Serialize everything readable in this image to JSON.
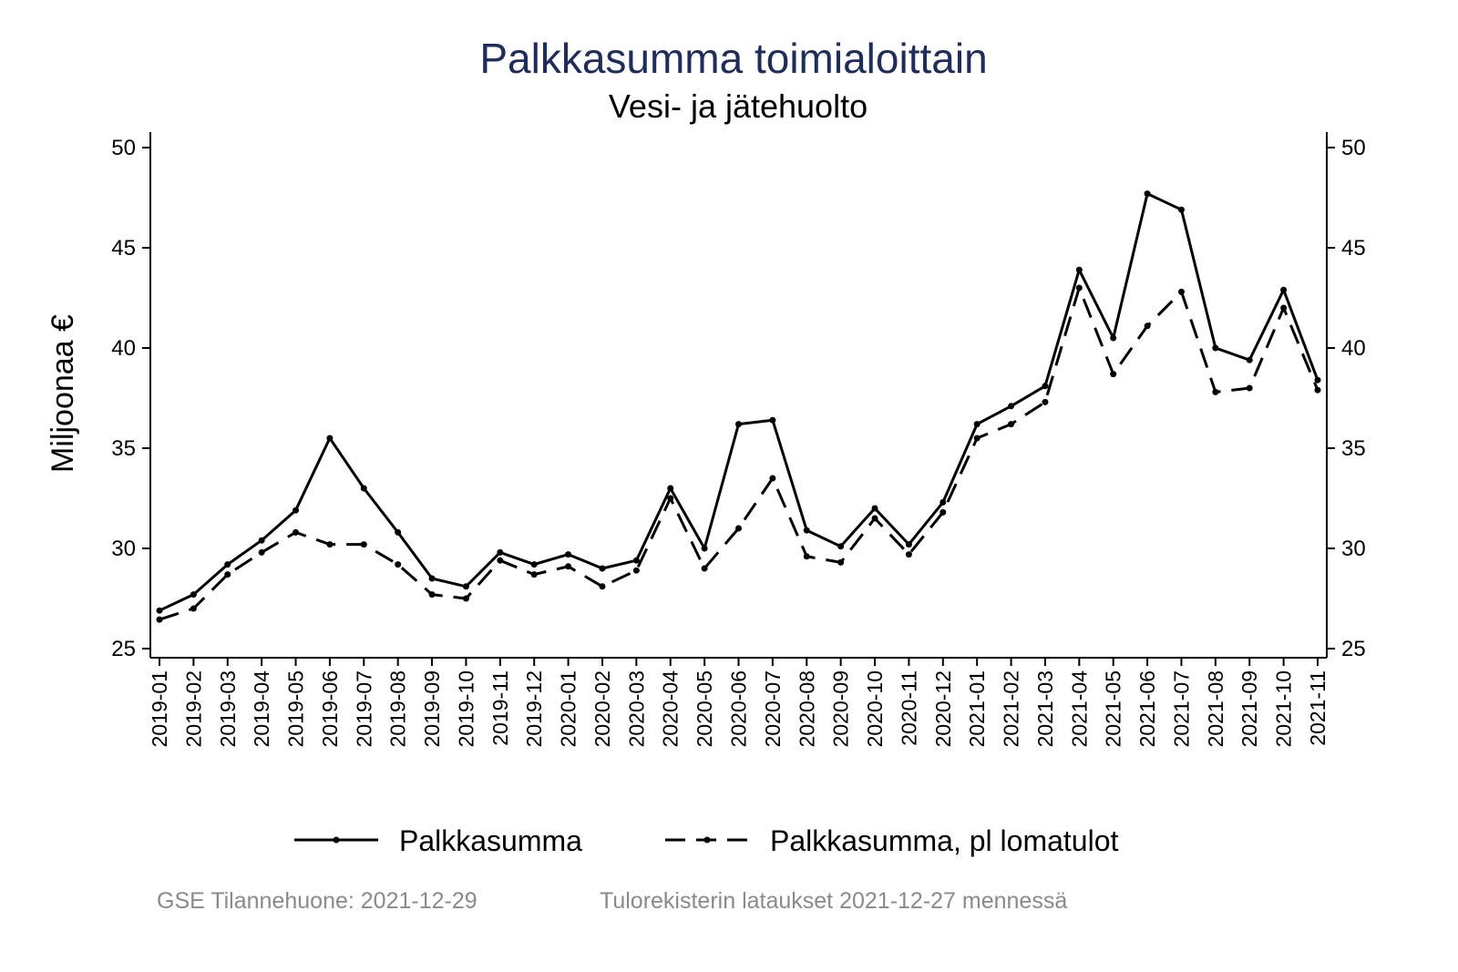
{
  "chart_data": {
    "type": "line",
    "title": "Palkkasumma toimialoittain",
    "subtitle": "Vesi- ja jätehuolto",
    "ylabel": "Miljoonaa €",
    "xlabel": "",
    "ylim": [
      25,
      50
    ],
    "yticks": [
      25,
      30,
      35,
      40,
      45,
      50
    ],
    "grid": false,
    "legend_position": "bottom",
    "colors": {
      "title": "#1f2d5a",
      "line": "#000000",
      "footer": "#8a8a8a"
    },
    "categories": [
      "2019-01",
      "2019-02",
      "2019-03",
      "2019-04",
      "2019-05",
      "2019-06",
      "2019-07",
      "2019-08",
      "2019-09",
      "2019-10",
      "2019-11",
      "2019-12",
      "2020-01",
      "2020-02",
      "2020-03",
      "2020-04",
      "2020-05",
      "2020-06",
      "2020-07",
      "2020-08",
      "2020-09",
      "2020-10",
      "2020-11",
      "2020-12",
      "2021-01",
      "2021-02",
      "2021-03",
      "2021-04",
      "2021-05",
      "2021-06",
      "2021-07",
      "2021-08",
      "2021-09",
      "2021-10",
      "2021-11"
    ],
    "series": [
      {
        "name": "Palkkasumma",
        "style": "solid",
        "values": [
          26.9,
          27.7,
          29.2,
          30.4,
          31.9,
          35.5,
          33.0,
          30.8,
          28.5,
          28.1,
          29.8,
          29.2,
          29.7,
          29.0,
          29.4,
          33.0,
          30.0,
          36.2,
          36.4,
          30.9,
          30.1,
          32.0,
          30.2,
          32.3,
          36.2,
          37.1,
          38.1,
          43.9,
          40.5,
          47.7,
          46.9,
          40.0,
          39.4,
          42.9,
          38.4
        ]
      },
      {
        "name": "Palkkasumma, pl lomatulot",
        "style": "dashed",
        "values": [
          26.45,
          27.0,
          28.7,
          29.8,
          30.8,
          30.2,
          30.2,
          29.2,
          27.7,
          27.5,
          29.4,
          28.7,
          29.1,
          28.1,
          28.9,
          32.5,
          29.0,
          31.0,
          33.5,
          29.6,
          29.3,
          31.5,
          29.7,
          31.8,
          35.5,
          36.2,
          37.3,
          43.0,
          38.7,
          41.1,
          42.8,
          37.8,
          38.0,
          42.0,
          37.9
        ]
      }
    ]
  },
  "footer": {
    "source": "GSE Tilannehuone: 2021-12-29",
    "note": "Tulorekisterin lataukset 2021-12-27 mennessä"
  }
}
